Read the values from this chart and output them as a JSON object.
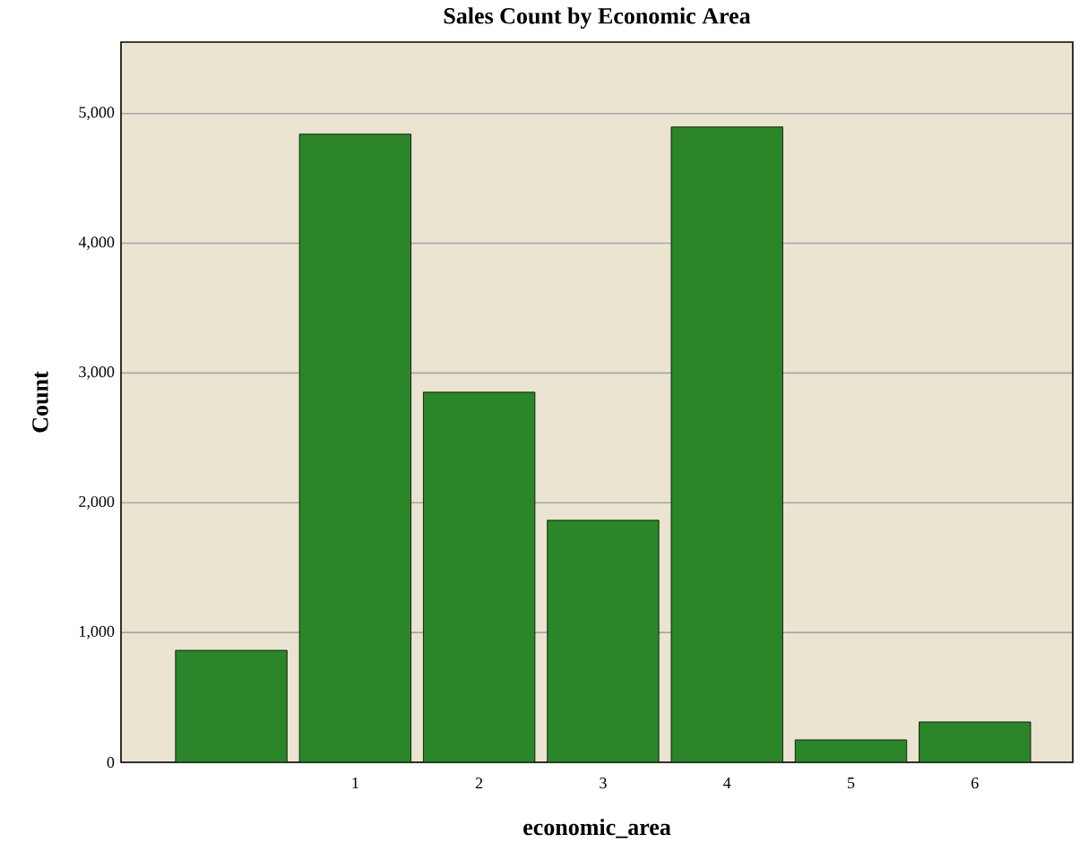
{
  "chart_data": {
    "type": "bar",
    "title": "Sales Count by Economic Area",
    "xlabel": "economic_area",
    "ylabel": "Count",
    "categories": [
      null,
      "1",
      "2",
      "3",
      "4",
      "5",
      "6"
    ],
    "values": [
      863,
      4841,
      2852,
      1865,
      4896,
      173,
      311
    ],
    "color": "#2a8629",
    "ylim": [
      0,
      5550
    ],
    "yticks": [
      0,
      {
        "value": 1000,
        "label": "1,000"
      },
      {
        "value": 2000,
        "label": "2,000"
      },
      {
        "value": 3000,
        "label": "3,000"
      },
      {
        "value": 4000,
        "label": "4,000"
      },
      {
        "value": 5000,
        "label": "5,000"
      }
    ],
    "grid": "y"
  }
}
